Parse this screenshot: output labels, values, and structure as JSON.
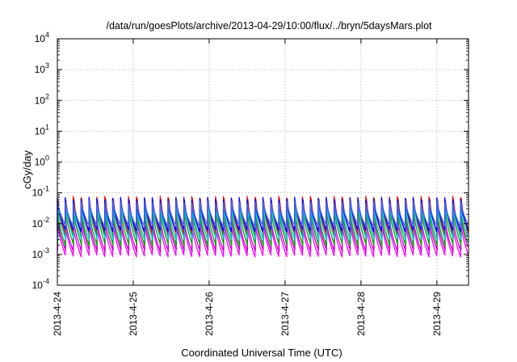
{
  "chart_data": {
    "type": "line",
    "title": "/data/run/goesPlots/archive/2013-04-29/10:00/flux/../bryn/5daysMars.plot",
    "xlabel": "Coordinated Universal Time (UTC)",
    "ylabel": "cGy/day",
    "y_scale": "log",
    "ylim": [
      0.0001,
      10000
    ],
    "y_ticks": [
      {
        "value": 0.0001,
        "base": "10",
        "exp": "-4"
      },
      {
        "value": 0.001,
        "base": "10",
        "exp": "-3"
      },
      {
        "value": 0.01,
        "base": "10",
        "exp": "-2"
      },
      {
        "value": 0.1,
        "base": "10",
        "exp": "-1"
      },
      {
        "value": 1,
        "base": "10",
        "exp": "0"
      },
      {
        "value": 10,
        "base": "10",
        "exp": "1"
      },
      {
        "value": 100,
        "base": "10",
        "exp": "2"
      },
      {
        "value": 1000,
        "base": "10",
        "exp": "3"
      },
      {
        "value": 10000,
        "base": "10",
        "exp": "4"
      }
    ],
    "xlim": [
      "2013-04-24T00:00",
      "2013-04-29T10:00"
    ],
    "x_ticks": [
      "2013-4-24",
      "2013-4-25",
      "2013-4-26",
      "2013-4-27",
      "2013-4-28",
      "2013-4-29"
    ],
    "grid": true,
    "sawtooth_period_hours": 2.5,
    "series": [
      {
        "color": "#ff00ff",
        "peak": 0.012,
        "trough": 0.0009
      },
      {
        "color": "#cc00cc",
        "peak": 0.016,
        "trough": 0.0013
      },
      {
        "color": "#880000",
        "peak": 0.06,
        "trough": 0.004
      },
      {
        "color": "#ff0000",
        "peak": 0.07,
        "trough": 0.005
      },
      {
        "color": "#00aa00",
        "peak": 0.03,
        "trough": 0.002
      },
      {
        "color": "#00cccc",
        "peak": 0.04,
        "trough": 0.003
      },
      {
        "color": "#0000ff",
        "peak": 0.065,
        "trough": 0.006
      },
      {
        "color": "#4466ee",
        "peak": 0.05,
        "trough": 0.008
      }
    ]
  }
}
